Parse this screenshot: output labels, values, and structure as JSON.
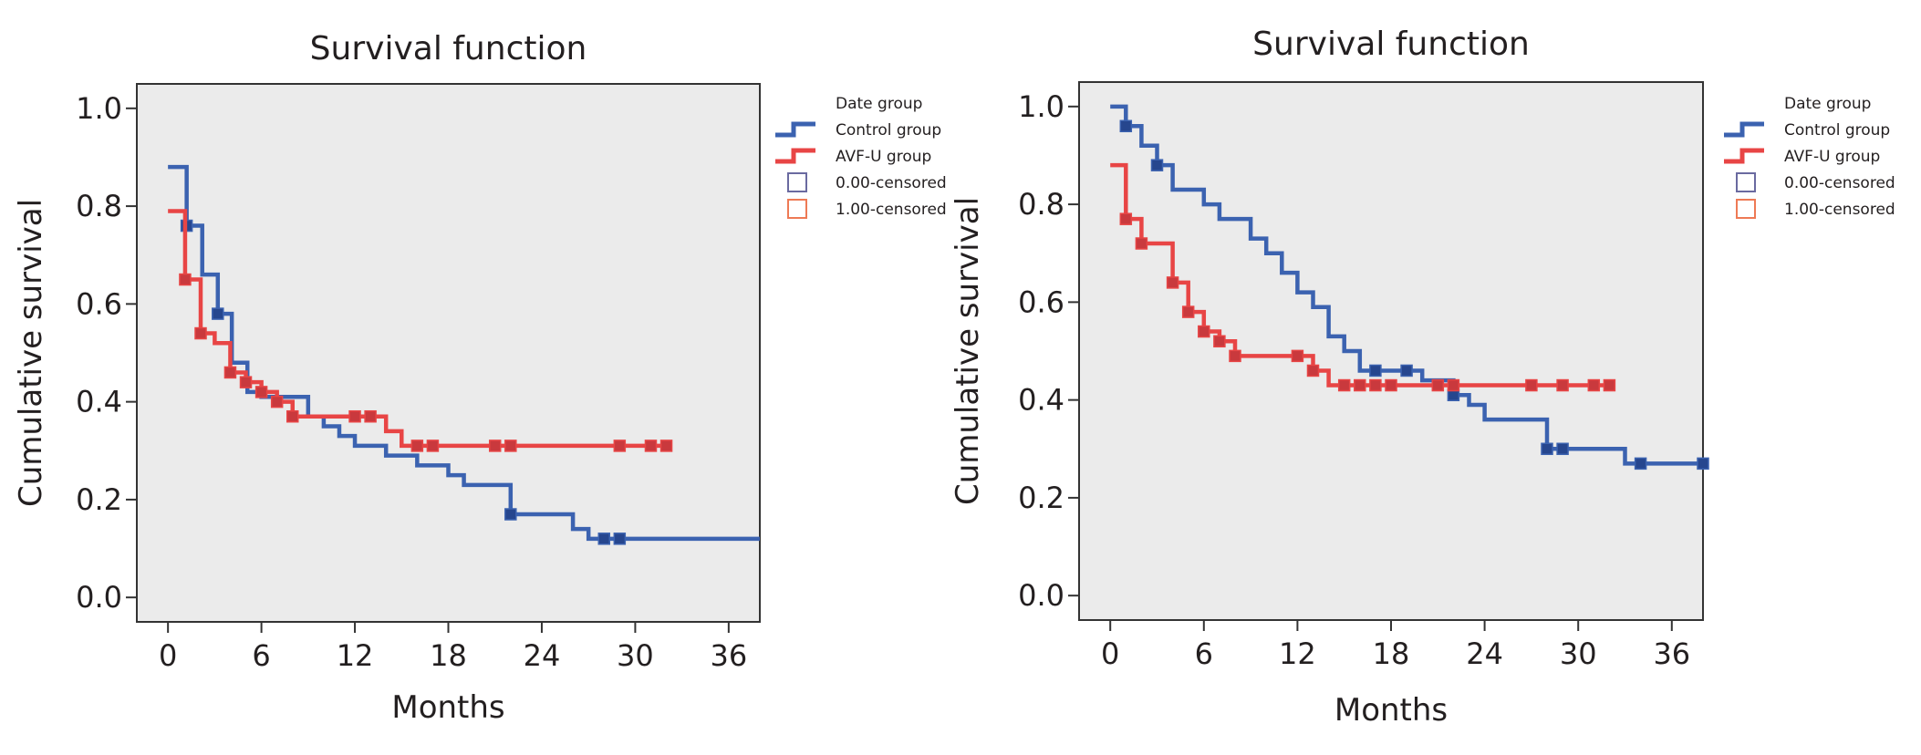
{
  "colors": {
    "control": "#3b62b0",
    "control_marker": "#26468e",
    "avf": "#e84545",
    "avf_marker": "#c9393d",
    "plot_bg": "#ebebeb",
    "frame": "#333333",
    "legend_censored_control": "#6a6aa0",
    "legend_censored_avf": "#ee7a55"
  },
  "legend": {
    "header": "Date group",
    "items": [
      {
        "label": "Control group",
        "kind": "line",
        "series": "control"
      },
      {
        "label": "AVF-U group",
        "kind": "line",
        "series": "avf"
      },
      {
        "label": "0.00-censored",
        "kind": "box",
        "series": "control"
      },
      {
        "label": "1.00-censored",
        "kind": "box",
        "series": "avf"
      }
    ]
  },
  "chart_data": [
    {
      "type": "line",
      "step": "post",
      "title": "Survival function",
      "xlabel": "Months",
      "ylabel": "Cumulative survival",
      "xlim": [
        -2,
        38
      ],
      "ylim": [
        -0.05,
        1.05
      ],
      "xticks": [
        0,
        6,
        12,
        18,
        24,
        30,
        36
      ],
      "xtick_labels": [
        "0",
        "6",
        "12",
        "18",
        "24",
        "30",
        "36"
      ],
      "yticks": [
        0.0,
        0.2,
        0.4,
        0.6,
        0.8,
        1.0
      ],
      "ytick_labels": [
        "0.0",
        "0.2",
        "0.4",
        "0.6",
        "0.8",
        "1.0"
      ],
      "series": [
        {
          "name": "Control group",
          "key": "control",
          "steps": [
            [
              0,
              0.88
            ],
            [
              1.2,
              0.76
            ],
            [
              2.2,
              0.66
            ],
            [
              3.2,
              0.58
            ],
            [
              4.1,
              0.48
            ],
            [
              5.1,
              0.42
            ],
            [
              6.0,
              0.41
            ],
            [
              9.0,
              0.37
            ],
            [
              10.0,
              0.35
            ],
            [
              11.0,
              0.33
            ],
            [
              12.0,
              0.31
            ],
            [
              14.0,
              0.29
            ],
            [
              16.0,
              0.27
            ],
            [
              18.0,
              0.25
            ],
            [
              19.0,
              0.23
            ],
            [
              22.0,
              0.17
            ],
            [
              26.0,
              0.14
            ],
            [
              27.0,
              0.12
            ],
            [
              38.0,
              0.12
            ]
          ],
          "censored": [
            [
              1.2,
              0.76
            ],
            [
              3.2,
              0.58
            ],
            [
              22.0,
              0.17
            ],
            [
              28.0,
              0.12
            ],
            [
              29.0,
              0.12
            ]
          ]
        },
        {
          "name": "AVF-U group",
          "key": "avf",
          "steps": [
            [
              0,
              0.79
            ],
            [
              1.1,
              0.65
            ],
            [
              2.1,
              0.54
            ],
            [
              3.0,
              0.52
            ],
            [
              4.0,
              0.46
            ],
            [
              5.0,
              0.44
            ],
            [
              6.0,
              0.42
            ],
            [
              7.0,
              0.4
            ],
            [
              8.0,
              0.37
            ],
            [
              12.0,
              0.37
            ],
            [
              14.0,
              0.34
            ],
            [
              15.0,
              0.31
            ],
            [
              32.0,
              0.31
            ]
          ],
          "censored": [
            [
              1.1,
              0.65
            ],
            [
              2.1,
              0.54
            ],
            [
              4.0,
              0.46
            ],
            [
              5.0,
              0.44
            ],
            [
              6.0,
              0.42
            ],
            [
              7.0,
              0.4
            ],
            [
              8.0,
              0.37
            ],
            [
              12.0,
              0.37
            ],
            [
              13.0,
              0.37
            ],
            [
              16.0,
              0.31
            ],
            [
              17.0,
              0.31
            ],
            [
              21.0,
              0.31
            ],
            [
              22.0,
              0.31
            ],
            [
              29.0,
              0.31
            ],
            [
              31.0,
              0.31
            ],
            [
              32.0,
              0.31
            ]
          ]
        }
      ]
    },
    {
      "type": "line",
      "step": "post",
      "title": "Survival function",
      "xlabel": "Months",
      "ylabel": "Cumulative survival",
      "xlim": [
        -2,
        38
      ],
      "ylim": [
        -0.05,
        1.05
      ],
      "xticks": [
        0,
        6,
        12,
        18,
        24,
        30,
        36
      ],
      "xtick_labels": [
        "0",
        "6",
        "12",
        "18",
        "24",
        "30",
        "36"
      ],
      "yticks": [
        0.0,
        0.2,
        0.4,
        0.6,
        0.8,
        1.0
      ],
      "ytick_labels": [
        "0.0",
        "0.2",
        "0.4",
        "0.6",
        "0.8",
        "1.0"
      ],
      "series": [
        {
          "name": "Control group",
          "key": "control",
          "steps": [
            [
              0,
              1.0
            ],
            [
              1.0,
              0.96
            ],
            [
              2.0,
              0.92
            ],
            [
              3.0,
              0.88
            ],
            [
              4.0,
              0.83
            ],
            [
              6.0,
              0.8
            ],
            [
              7.0,
              0.77
            ],
            [
              9.0,
              0.73
            ],
            [
              10.0,
              0.7
            ],
            [
              11.0,
              0.66
            ],
            [
              12.0,
              0.62
            ],
            [
              13.0,
              0.59
            ],
            [
              14.0,
              0.53
            ],
            [
              15.0,
              0.5
            ],
            [
              16.0,
              0.46
            ],
            [
              20.0,
              0.44
            ],
            [
              22.0,
              0.41
            ],
            [
              23.0,
              0.39
            ],
            [
              24.0,
              0.36
            ],
            [
              28.0,
              0.3
            ],
            [
              33.0,
              0.27
            ],
            [
              38.0,
              0.27
            ]
          ],
          "censored": [
            [
              1.0,
              0.96
            ],
            [
              3.0,
              0.88
            ],
            [
              17.0,
              0.46
            ],
            [
              19.0,
              0.46
            ],
            [
              22.0,
              0.41
            ],
            [
              28.0,
              0.3
            ],
            [
              29.0,
              0.3
            ],
            [
              34.0,
              0.27
            ],
            [
              38.0,
              0.27
            ]
          ]
        },
        {
          "name": "AVF-U group",
          "key": "avf",
          "steps": [
            [
              0,
              0.88
            ],
            [
              1.0,
              0.77
            ],
            [
              2.0,
              0.72
            ],
            [
              4.0,
              0.64
            ],
            [
              5.0,
              0.58
            ],
            [
              6.0,
              0.54
            ],
            [
              7.0,
              0.52
            ],
            [
              8.0,
              0.49
            ],
            [
              13.0,
              0.46
            ],
            [
              14.0,
              0.43
            ],
            [
              32.0,
              0.43
            ]
          ],
          "censored": [
            [
              1.0,
              0.77
            ],
            [
              2.0,
              0.72
            ],
            [
              4.0,
              0.64
            ],
            [
              5.0,
              0.58
            ],
            [
              6.0,
              0.54
            ],
            [
              7.0,
              0.52
            ],
            [
              8.0,
              0.49
            ],
            [
              12.0,
              0.49
            ],
            [
              13.0,
              0.46
            ],
            [
              15.0,
              0.43
            ],
            [
              16.0,
              0.43
            ],
            [
              17.0,
              0.43
            ],
            [
              18.0,
              0.43
            ],
            [
              21.0,
              0.43
            ],
            [
              22.0,
              0.43
            ],
            [
              27.0,
              0.43
            ],
            [
              29.0,
              0.43
            ],
            [
              31.0,
              0.43
            ],
            [
              32.0,
              0.43
            ]
          ]
        }
      ]
    }
  ]
}
